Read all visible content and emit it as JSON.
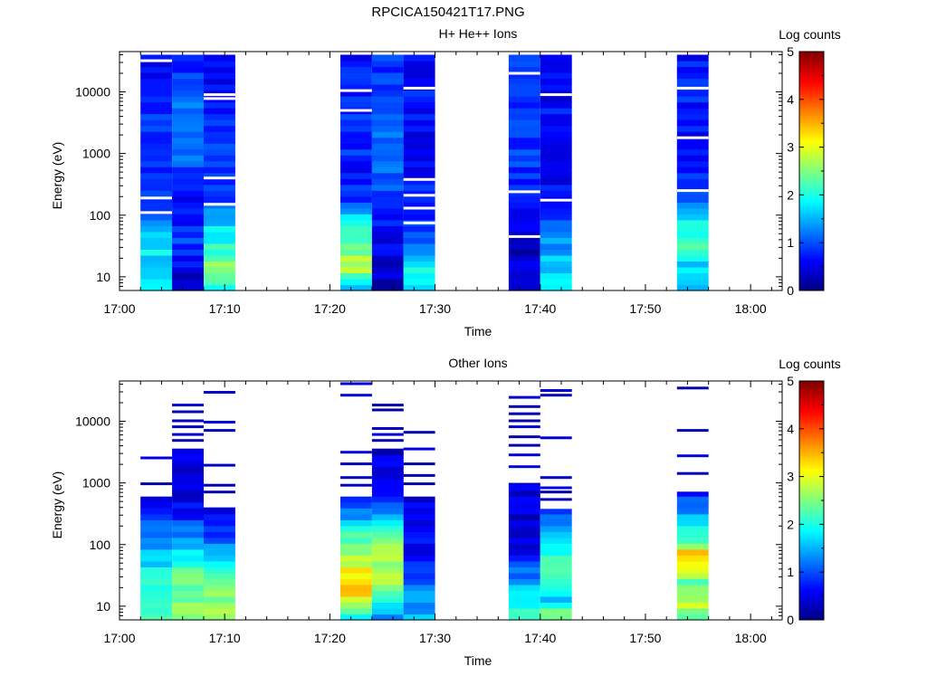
{
  "figure_title": "RPCICA150421T17.PNG",
  "chart_data": [
    {
      "type": "heatmap",
      "title": "H+ He++ Ions",
      "xlabel": "Time",
      "ylabel": "Energy (eV)",
      "xlim": [
        "17:00",
        "18:03"
      ],
      "ylim": [
        6,
        45000
      ],
      "y_scale": "log",
      "x_ticks": [
        "17:00",
        "17:10",
        "17:20",
        "17:30",
        "17:40",
        "17:50",
        "18:00"
      ],
      "y_ticks": [
        10,
        100,
        1000,
        10000
      ],
      "y_tick_labels": [
        "10",
        "100",
        "1000",
        "10000"
      ],
      "colorbar": {
        "label": "Log counts",
        "range": [
          0,
          5
        ],
        "ticks": [
          "0",
          "1",
          "2",
          "3",
          "4",
          "5"
        ]
      },
      "columns": [
        {
          "t_start": "17:02",
          "t_end": "17:05",
          "profile": [
            2.1,
            1.7,
            1.8,
            1.2,
            0.8,
            0.7,
            0.9,
            0.8,
            0.8,
            0.7,
            0.6,
            0.6
          ],
          "gaps_eV": [
            110,
            190,
            32000
          ]
        },
        {
          "t_start": "17:05",
          "t_end": "17:08",
          "profile": [
            0.2,
            0.6,
            0.9,
            0.8,
            0.7,
            0.8,
            1.1,
            1.2,
            1.2,
            1.0,
            0.9,
            0.8
          ],
          "gaps_eV": []
        },
        {
          "t_start": "17:08",
          "t_end": "17:11",
          "profile": [
            2.1,
            2.7,
            2.0,
            1.6,
            0.9,
            0.8,
            0.9,
            0.8,
            0.8,
            0.7,
            0.7,
            0.7
          ],
          "gaps_eV": [
            150,
            400,
            7800,
            9000
          ]
        },
        {
          "t_start": "17:21",
          "t_end": "17:24",
          "profile": [
            1.5,
            2.9,
            2.4,
            1.9,
            0.9,
            0.7,
            0.8,
            0.8,
            0.8,
            0.7,
            0.7,
            0.6
          ],
          "gaps_eV": [
            5000,
            10500
          ]
        },
        {
          "t_start": "17:24",
          "t_end": "17:27",
          "profile": [
            0.2,
            0.4,
            0.6,
            0.7,
            0.8,
            1.0,
            1.3,
            1.1,
            1.0,
            0.9,
            0.9,
            0.8
          ],
          "gaps_eV": []
        },
        {
          "t_start": "17:27",
          "t_end": "17:30",
          "profile": [
            1.7,
            1.9,
            1.3,
            0.8,
            0.7,
            0.7,
            0.7,
            0.6,
            0.7,
            0.7,
            0.6,
            0.6
          ],
          "gaps_eV": [
            75,
            130,
            210,
            380,
            11500
          ]
        },
        {
          "t_start": "17:37",
          "t_end": "17:40",
          "profile": [
            0.3,
            0.4,
            0.2,
            0.6,
            0.7,
            0.8,
            0.9,
            0.9,
            1.0,
            0.9,
            0.8,
            0.8
          ],
          "gaps_eV": [
            45,
            240,
            20000
          ]
        },
        {
          "t_start": "17:40",
          "t_end": "17:43",
          "profile": [
            2.0,
            1.6,
            1.4,
            1.1,
            0.8,
            0.6,
            0.6,
            0.7,
            0.7,
            0.5,
            0.5,
            0.5
          ],
          "gaps_eV": [
            175,
            9000
          ]
        },
        {
          "t_start": "17:53",
          "t_end": "17:56",
          "profile": [
            1.6,
            1.7,
            2.2,
            1.8,
            1.3,
            0.8,
            0.7,
            0.7,
            0.7,
            0.8,
            0.7,
            0.7
          ],
          "gaps_eV": [
            250,
            1800,
            11500
          ]
        }
      ]
    },
    {
      "type": "heatmap",
      "title": "Other Ions",
      "xlabel": "Time",
      "ylabel": "Energy (eV)",
      "xlim": [
        "17:00",
        "18:03"
      ],
      "ylim": [
        6,
        45000
      ],
      "y_scale": "log",
      "x_ticks": [
        "17:00",
        "17:10",
        "17:20",
        "17:30",
        "17:40",
        "17:50",
        "18:00"
      ],
      "y_ticks": [
        10,
        100,
        1000,
        10000
      ],
      "y_tick_labels": [
        "10",
        "100",
        "1000",
        "10000"
      ],
      "colorbar": {
        "label": "Log counts",
        "range": [
          0,
          5
        ],
        "ticks": [
          "0",
          "1",
          "2",
          "3",
          "4",
          "5"
        ]
      },
      "columns": [
        {
          "t_start": "17:02",
          "t_end": "17:05",
          "profile": [
            2.3,
            2.1,
            1.9,
            1.6,
            1.3,
            0.8,
            0.6
          ],
          "top_eV": 600,
          "lines_eV": [
            950,
            2500
          ]
        },
        {
          "t_start": "17:05",
          "t_end": "17:08",
          "profile": [
            2.4,
            2.5,
            2.4,
            1.8,
            1.1,
            0.7,
            0.4,
            0.4,
            0.4
          ],
          "top_eV": 3600,
          "lines_eV": [
            4800,
            6000,
            8000,
            10000,
            14000,
            18000
          ]
        },
        {
          "t_start": "17:08",
          "t_end": "17:11",
          "profile": [
            2.7,
            2.6,
            2.1,
            1.7,
            1.2,
            0.7,
            0.5
          ],
          "top_eV": 400,
          "lines_eV": [
            700,
            900,
            1900,
            7000,
            9500,
            29000
          ]
        },
        {
          "t_start": "17:21",
          "t_end": "17:24",
          "profile": [
            1.7,
            3.3,
            3.2,
            2.7,
            2.3,
            1.2,
            0.6
          ],
          "top_eV": 600,
          "lines_eV": [
            900,
            1200,
            2000,
            3100,
            26000,
            40000
          ]
        },
        {
          "t_start": "17:24",
          "t_end": "17:27",
          "profile": [
            1.2,
            2.2,
            2.8,
            2.7,
            2.2,
            1.0,
            0.6,
            0.5,
            0.4
          ],
          "top_eV": 3600,
          "lines_eV": [
            4800,
            6000,
            7500,
            15000,
            18000
          ]
        },
        {
          "t_start": "17:27",
          "t_end": "17:30",
          "profile": [
            1.6,
            1.3,
            1.0,
            0.7,
            0.6,
            0.5,
            0.4
          ],
          "top_eV": 600,
          "lines_eV": [
            950,
            1300,
            2000,
            3500,
            6500
          ]
        },
        {
          "t_start": "17:37",
          "t_end": "17:40",
          "profile": [
            2.2,
            1.9,
            1.1,
            0.6,
            0.4,
            0.4,
            0.4
          ],
          "top_eV": 1000,
          "lines_eV": [
            1800,
            2800,
            4000,
            5500,
            8000,
            10000,
            13000,
            17000,
            24000
          ]
        },
        {
          "t_start": "17:40",
          "t_end": "17:43",
          "profile": [
            2.6,
            1.6,
            2.1,
            2.3,
            1.7,
            1.4,
            0.8
          ],
          "top_eV": 380,
          "lines_eV": [
            530,
            700,
            820,
            1200,
            5300,
            26000,
            31000
          ]
        },
        {
          "t_start": "17:53",
          "t_end": "17:56",
          "profile": [
            2.4,
            2.9,
            2.3,
            2.9,
            3.3,
            2.1,
            1.7,
            1.1,
            0.7
          ],
          "top_eV": 720,
          "lines_eV": [
            1400,
            2700,
            7000,
            34000
          ]
        }
      ]
    }
  ]
}
